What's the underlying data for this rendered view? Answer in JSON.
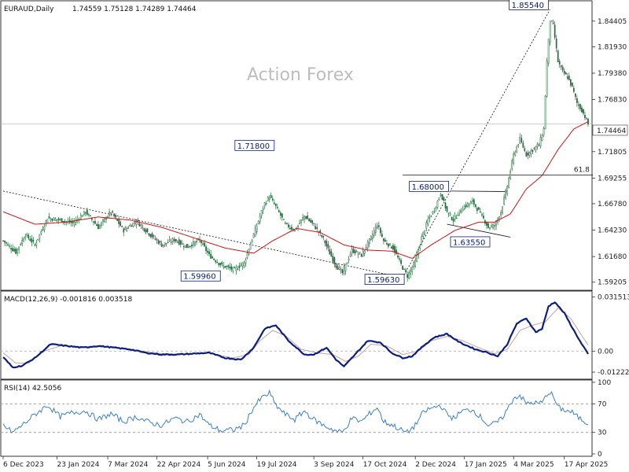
{
  "header": {
    "symbol": "EURAUD,Daily",
    "ohlc": "1.74559 1.75128 1.74289 1.74464"
  },
  "watermark": "Action Forex",
  "colors": {
    "candle": "#1f6b3a",
    "ma": "#d01515",
    "macd": "#0c1f7e",
    "signal": "#c8a0a0",
    "rsi": "#3b7fd0",
    "grid": "#cccccc",
    "axis": "#333333",
    "label_border": "#0a1f6e",
    "label_bg": "#ffffff"
  },
  "x_axis": {
    "labels": [
      {
        "i": 0,
        "text": "6 Dec 2023"
      },
      {
        "i": 34,
        "text": "23 Jan 2024"
      },
      {
        "i": 66,
        "text": "7 Mar 2024"
      },
      {
        "i": 97,
        "text": "22 Apr 2024"
      },
      {
        "i": 129,
        "text": "5 Jun 2024"
      },
      {
        "i": 160,
        "text": "19 Jul 2024"
      },
      {
        "i": 196,
        "text": "3 Sep 2024"
      },
      {
        "i": 227,
        "text": "17 Oct 2024"
      },
      {
        "i": 260,
        "text": "2 Dec 2024"
      },
      {
        "i": 291,
        "text": "17 Jan 2025"
      },
      {
        "i": 322,
        "text": "4 Mar 2025"
      },
      {
        "i": 354,
        "text": "17 Apr 2025"
      }
    ]
  },
  "chart_data": [
    {
      "type": "candlestick",
      "title": "EURAUD,Daily",
      "ylim": [
        1.5865,
        1.8614
      ],
      "y_ticks": [
        "1.59205",
        "1.61680",
        "1.64230",
        "1.66780",
        "1.69255",
        "1.71805",
        "1.74464",
        "1.76830",
        "1.79380",
        "1.81930",
        "1.84405"
      ],
      "current_price": "1.74464",
      "anchors": [
        [
          0,
          1.632
        ],
        [
          8,
          1.621
        ],
        [
          14,
          1.638
        ],
        [
          20,
          1.628
        ],
        [
          28,
          1.654
        ],
        [
          36,
          1.652
        ],
        [
          44,
          1.649
        ],
        [
          52,
          1.66
        ],
        [
          60,
          1.645
        ],
        [
          68,
          1.66
        ],
        [
          76,
          1.642
        ],
        [
          84,
          1.651
        ],
        [
          92,
          1.639
        ],
        [
          100,
          1.628
        ],
        [
          108,
          1.633
        ],
        [
          116,
          1.626
        ],
        [
          124,
          1.633
        ],
        [
          130,
          1.618
        ],
        [
          138,
          1.608
        ],
        [
          146,
          1.604
        ],
        [
          152,
          1.611
        ],
        [
          158,
          1.638
        ],
        [
          163,
          1.66
        ],
        [
          165,
          1.668
        ],
        [
          168,
          1.675
        ],
        [
          172,
          1.665
        ],
        [
          178,
          1.648
        ],
        [
          184,
          1.642
        ],
        [
          190,
          1.656
        ],
        [
          196,
          1.647
        ],
        [
          202,
          1.634
        ],
        [
          206,
          1.62
        ],
        [
          210,
          1.608
        ],
        [
          214,
          1.601
        ],
        [
          220,
          1.623
        ],
        [
          226,
          1.618
        ],
        [
          232,
          1.635
        ],
        [
          236,
          1.648
        ],
        [
          240,
          1.632
        ],
        [
          246,
          1.625
        ],
        [
          252,
          1.606
        ],
        [
          255,
          1.598
        ],
        [
          260,
          1.612
        ],
        [
          264,
          1.635
        ],
        [
          268,
          1.652
        ],
        [
          272,
          1.662
        ],
        [
          276,
          1.678
        ],
        [
          280,
          1.66
        ],
        [
          284,
          1.652
        ],
        [
          290,
          1.664
        ],
        [
          296,
          1.67
        ],
        [
          302,
          1.656
        ],
        [
          306,
          1.645
        ],
        [
          310,
          1.647
        ],
        [
          314,
          1.66
        ],
        [
          318,
          1.685
        ],
        [
          322,
          1.715
        ],
        [
          326,
          1.73
        ],
        [
          330,
          1.715
        ],
        [
          334,
          1.72
        ],
        [
          338,
          1.725
        ],
        [
          341,
          1.74
        ],
        [
          343,
          1.805
        ],
        [
          345,
          1.845
        ],
        [
          347,
          1.84
        ],
        [
          350,
          1.805
        ],
        [
          353,
          1.795
        ],
        [
          356,
          1.79
        ],
        [
          359,
          1.78
        ],
        [
          362,
          1.765
        ],
        [
          365,
          1.758
        ],
        [
          367,
          1.752
        ],
        [
          369,
          1.7446
        ]
      ],
      "ma_anchors": [
        [
          0,
          1.66
        ],
        [
          20,
          1.648
        ],
        [
          40,
          1.65
        ],
        [
          60,
          1.655
        ],
        [
          80,
          1.652
        ],
        [
          100,
          1.645
        ],
        [
          120,
          1.635
        ],
        [
          140,
          1.625
        ],
        [
          158,
          1.62
        ],
        [
          170,
          1.632
        ],
        [
          185,
          1.644
        ],
        [
          200,
          1.64
        ],
        [
          215,
          1.628
        ],
        [
          230,
          1.623
        ],
        [
          245,
          1.622
        ],
        [
          258,
          1.615
        ],
        [
          270,
          1.628
        ],
        [
          285,
          1.642
        ],
        [
          300,
          1.65
        ],
        [
          310,
          1.65
        ],
        [
          320,
          1.658
        ],
        [
          330,
          1.682
        ],
        [
          340,
          1.695
        ],
        [
          350,
          1.72
        ],
        [
          360,
          1.74
        ],
        [
          369,
          1.747
        ]
      ],
      "series": [
        {
          "name": "",
          "kind": "candles"
        },
        {
          "name": "",
          "kind": "moving-average"
        }
      ],
      "annotations": [
        {
          "i": 172,
          "y": 1.718,
          "text": "1.71800"
        },
        {
          "i": 138,
          "y": 1.5996,
          "text": "1.59960"
        },
        {
          "i": 252,
          "y": 1.5963,
          "text": "1.59630"
        },
        {
          "i": 282,
          "y": 1.68,
          "text": "1.68000"
        },
        {
          "i": 308,
          "y": 1.6355,
          "text": "1.63550"
        },
        {
          "i": 345,
          "y": 1.8554,
          "text": "1.85540"
        }
      ],
      "fib_label": "61.8",
      "fib_level": 1.6955,
      "trendlines": [
        {
          "from": [
            0,
            1.68
          ],
          "to": [
            252,
            1.5963
          ],
          "style": "dotted"
        },
        {
          "from": [
            252,
            1.5963
          ],
          "to": [
            345,
            1.8554
          ],
          "style": "dotted"
        },
        {
          "from": [
            252,
            1.6955
          ],
          "to": [
            372,
            1.6955
          ],
          "style": "solid"
        },
        {
          "from": [
            282,
            1.68
          ],
          "to": [
            318,
            1.6795
          ],
          "style": "solid"
        },
        {
          "from": [
            280,
            1.648
          ],
          "to": [
            320,
            1.6355
          ],
          "style": "solid"
        }
      ]
    },
    {
      "type": "line",
      "title": "MACD(12,26,9) -0.001816 0.003518",
      "ylim": [
        -0.0145,
        0.0335
      ],
      "y_ticks": [
        "0.031513",
        "0.00",
        "-0.012223"
      ],
      "zero_line": 0.0,
      "anchors": [
        [
          0,
          -0.0035
        ],
        [
          6,
          -0.0095
        ],
        [
          12,
          -0.0085
        ],
        [
          20,
          -0.004
        ],
        [
          30,
          0.004
        ],
        [
          40,
          0.003
        ],
        [
          50,
          0.002
        ],
        [
          60,
          0.003
        ],
        [
          70,
          0.002
        ],
        [
          80,
          0.001
        ],
        [
          90,
          -0.001
        ],
        [
          100,
          -0.002
        ],
        [
          110,
          -0.002
        ],
        [
          120,
          -0.0015
        ],
        [
          130,
          -0.001
        ],
        [
          140,
          -0.004
        ],
        [
          150,
          -0.005
        ],
        [
          158,
          0.002
        ],
        [
          165,
          0.013
        ],
        [
          172,
          0.015
        ],
        [
          180,
          0.006
        ],
        [
          190,
          -0.002
        ],
        [
          196,
          -0.002
        ],
        [
          204,
          0.002
        ],
        [
          210,
          -0.005
        ],
        [
          215,
          -0.009
        ],
        [
          222,
          -0.002
        ],
        [
          230,
          0.006
        ],
        [
          238,
          0.005
        ],
        [
          245,
          -0.001
        ],
        [
          252,
          -0.004
        ],
        [
          258,
          -0.003
        ],
        [
          265,
          0.003
        ],
        [
          272,
          0.008
        ],
        [
          280,
          0.01
        ],
        [
          288,
          0.005
        ],
        [
          298,
          0.001
        ],
        [
          306,
          -0.001
        ],
        [
          312,
          -0.003
        ],
        [
          318,
          0.004
        ],
        [
          324,
          0.016
        ],
        [
          330,
          0.019
        ],
        [
          336,
          0.011
        ],
        [
          340,
          0.013
        ],
        [
          344,
          0.026
        ],
        [
          348,
          0.0285
        ],
        [
          354,
          0.022
        ],
        [
          360,
          0.012
        ],
        [
          365,
          0.004
        ],
        [
          369,
          -0.0018
        ]
      ],
      "signal_anchors": [
        [
          0,
          -0.001
        ],
        [
          8,
          -0.007
        ],
        [
          16,
          -0.007
        ],
        [
          26,
          0.0
        ],
        [
          36,
          0.003
        ],
        [
          50,
          0.0025
        ],
        [
          60,
          0.0025
        ],
        [
          70,
          0.002
        ],
        [
          80,
          0.0012
        ],
        [
          90,
          -0.0005
        ],
        [
          100,
          -0.0015
        ],
        [
          115,
          -0.0018
        ],
        [
          130,
          -0.0012
        ],
        [
          145,
          -0.004
        ],
        [
          155,
          -0.002
        ],
        [
          162,
          0.006
        ],
        [
          170,
          0.012
        ],
        [
          178,
          0.009
        ],
        [
          188,
          0.001
        ],
        [
          198,
          -0.001
        ],
        [
          208,
          -0.002
        ],
        [
          216,
          -0.006
        ],
        [
          224,
          -0.003
        ],
        [
          232,
          0.004
        ],
        [
          242,
          0.003
        ],
        [
          252,
          -0.002
        ],
        [
          262,
          0.0
        ],
        [
          270,
          0.006
        ],
        [
          280,
          0.0085
        ],
        [
          290,
          0.006
        ],
        [
          300,
          0.002
        ],
        [
          310,
          -0.0015
        ],
        [
          318,
          0.001
        ],
        [
          326,
          0.012
        ],
        [
          334,
          0.015
        ],
        [
          342,
          0.017
        ],
        [
          350,
          0.025
        ],
        [
          358,
          0.019
        ],
        [
          365,
          0.009
        ],
        [
          369,
          0.0035
        ]
      ],
      "series": [
        {
          "name": "",
          "kind": "macd"
        },
        {
          "name": "",
          "kind": "signal"
        }
      ]
    },
    {
      "type": "line",
      "title": "RSI(14) 42.5056",
      "ylim": [
        0,
        100
      ],
      "y_ticks": [
        "100",
        "70",
        "30",
        "0"
      ],
      "dashed_levels": [
        70,
        30
      ],
      "anchors": [
        [
          0,
          40
        ],
        [
          6,
          30
        ],
        [
          12,
          40
        ],
        [
          20,
          55
        ],
        [
          28,
          68
        ],
        [
          36,
          52
        ],
        [
          44,
          58
        ],
        [
          52,
          60
        ],
        [
          60,
          48
        ],
        [
          68,
          56
        ],
        [
          76,
          45
        ],
        [
          84,
          52
        ],
        [
          92,
          44
        ],
        [
          100,
          40
        ],
        [
          108,
          50
        ],
        [
          116,
          45
        ],
        [
          124,
          55
        ],
        [
          130,
          40
        ],
        [
          138,
          32
        ],
        [
          146,
          34
        ],
        [
          152,
          40
        ],
        [
          158,
          65
        ],
        [
          163,
          78
        ],
        [
          168,
          85
        ],
        [
          172,
          68
        ],
        [
          178,
          55
        ],
        [
          184,
          48
        ],
        [
          190,
          60
        ],
        [
          196,
          48
        ],
        [
          202,
          40
        ],
        [
          206,
          36
        ],
        [
          210,
          32
        ],
        [
          214,
          30
        ],
        [
          220,
          50
        ],
        [
          226,
          45
        ],
        [
          232,
          58
        ],
        [
          236,
          65
        ],
        [
          240,
          45
        ],
        [
          246,
          40
        ],
        [
          252,
          32
        ],
        [
          255,
          30
        ],
        [
          260,
          40
        ],
        [
          264,
          55
        ],
        [
          268,
          62
        ],
        [
          272,
          65
        ],
        [
          276,
          68
        ],
        [
          280,
          55
        ],
        [
          284,
          50
        ],
        [
          290,
          60
        ],
        [
          296,
          62
        ],
        [
          302,
          50
        ],
        [
          306,
          40
        ],
        [
          310,
          42
        ],
        [
          314,
          48
        ],
        [
          318,
          62
        ],
        [
          322,
          78
        ],
        [
          326,
          82
        ],
        [
          330,
          70
        ],
        [
          334,
          72
        ],
        [
          338,
          70
        ],
        [
          341,
          74
        ],
        [
          343,
          84
        ],
        [
          345,
          86
        ],
        [
          347,
          80
        ],
        [
          350,
          65
        ],
        [
          353,
          62
        ],
        [
          356,
          60
        ],
        [
          359,
          58
        ],
        [
          362,
          52
        ],
        [
          365,
          48
        ],
        [
          367,
          45
        ],
        [
          369,
          42.5
        ]
      ],
      "series": [
        {
          "name": "",
          "kind": "rsi"
        }
      ]
    }
  ]
}
